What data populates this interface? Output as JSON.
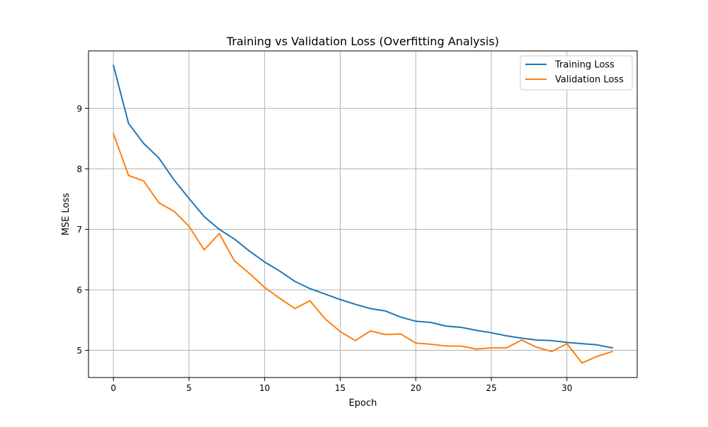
{
  "chart_data": {
    "type": "line",
    "title": "Training vs Validation Loss (Overfitting Analysis)",
    "xlabel": "Epoch",
    "ylabel": "MSE Loss",
    "xlim": [
      -1.65,
      34.65
    ],
    "ylim": [
      4.55,
      9.95
    ],
    "xticks": [
      0,
      5,
      10,
      15,
      20,
      25,
      30
    ],
    "yticks": [
      5,
      6,
      7,
      8,
      9
    ],
    "grid": true,
    "legend_position": "top-right",
    "x": [
      0,
      1,
      2,
      3,
      4,
      5,
      6,
      7,
      8,
      9,
      10,
      11,
      12,
      13,
      14,
      15,
      16,
      17,
      18,
      19,
      20,
      21,
      22,
      23,
      24,
      25,
      26,
      27,
      28,
      29,
      30,
      31,
      32,
      33
    ],
    "series": [
      {
        "name": "Training Loss",
        "color": "#1f77b4",
        "values": [
          9.71,
          8.75,
          8.42,
          8.18,
          7.82,
          7.51,
          7.21,
          7.0,
          6.84,
          6.64,
          6.46,
          6.31,
          6.14,
          6.02,
          5.93,
          5.84,
          5.76,
          5.69,
          5.65,
          5.55,
          5.48,
          5.46,
          5.4,
          5.38,
          5.33,
          5.29,
          5.24,
          5.2,
          5.17,
          5.16,
          5.13,
          5.11,
          5.09,
          5.04
        ]
      },
      {
        "name": "Validation Loss",
        "color": "#ff7f0e",
        "values": [
          8.58,
          7.89,
          7.8,
          7.44,
          7.3,
          7.05,
          6.66,
          6.93,
          6.48,
          6.27,
          6.04,
          5.86,
          5.69,
          5.82,
          5.52,
          5.31,
          5.16,
          5.32,
          5.26,
          5.27,
          5.12,
          5.1,
          5.07,
          5.07,
          5.02,
          5.04,
          5.04,
          5.17,
          5.05,
          4.98,
          5.11,
          4.79,
          4.9,
          4.98
        ]
      }
    ]
  }
}
